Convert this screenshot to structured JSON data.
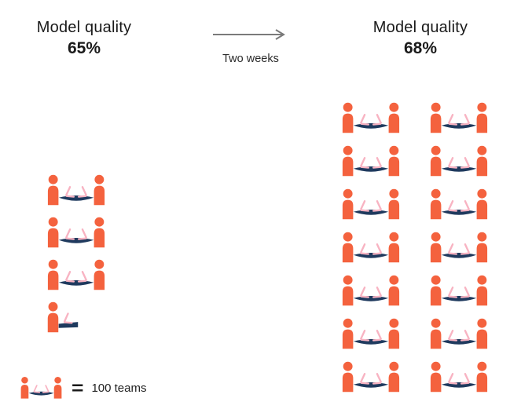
{
  "chart_data": {
    "type": "pictogram",
    "icon": "two-people-at-table-with-laptops",
    "unit_per_icon": 100,
    "unit_label": "100 teams",
    "transition": "Two weeks",
    "series": [
      {
        "name": "before",
        "title": "Model quality",
        "value": "65%",
        "icons_full": 3,
        "icons_half": 1,
        "teams_estimate": 350
      },
      {
        "name": "after",
        "title": "Model quality",
        "value": "68%",
        "icons_full": 14,
        "icons_half": 0,
        "teams_estimate": 1400
      }
    ],
    "layout": {
      "after_grid_columns": 2,
      "after_grid_rows": 7,
      "before_grid_columns": 1
    }
  },
  "before": {
    "title": "Model quality",
    "value": "65%"
  },
  "after": {
    "title": "Model quality",
    "value": "68%"
  },
  "transition": {
    "label": "Two weeks"
  },
  "legend": {
    "equals": "=",
    "label": "100 teams"
  },
  "colors": {
    "person": "#F4623E",
    "table": "#1F3A5E",
    "laptop": "#F8B3C2",
    "arrow": "#7A7A7A",
    "text": "#1A1A1A"
  }
}
